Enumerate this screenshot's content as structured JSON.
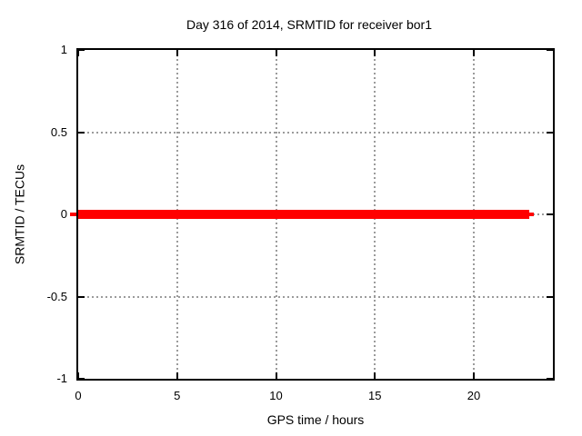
{
  "title": "Day 316 of 2014, SRMTID for receiver bor1",
  "chart_data": {
    "type": "line",
    "title": "Day 316 of 2014, SRMTID for receiver bor1",
    "xlabel": "GPS time / hours",
    "ylabel": "SRMTID / TECUs",
    "xlim": [
      0,
      24
    ],
    "ylim": [
      -1,
      1
    ],
    "xticks": [
      {
        "v": 0,
        "label": "0"
      },
      {
        "v": 5,
        "label": "5"
      },
      {
        "v": 10,
        "label": "10"
      },
      {
        "v": 15,
        "label": "15"
      },
      {
        "v": 20,
        "label": "20"
      }
    ],
    "yticks": [
      {
        "v": 1,
        "label": "1"
      },
      {
        "v": 0.5,
        "label": "0.5"
      },
      {
        "v": 0,
        "label": "0"
      },
      {
        "v": -0.5,
        "label": "-0.5"
      },
      {
        "v": -1,
        "label": "-1"
      }
    ],
    "grid": true,
    "legend": "none",
    "series": [
      {
        "name": "SRMTID",
        "shape": "horizontal-line",
        "y": 0,
        "x_start": 0,
        "x_end": 22.8,
        "thickness_px": 10,
        "color": "#ff0000"
      }
    ]
  },
  "colors": {
    "background": "#ffffff",
    "axis": "#000000",
    "grid": "#9b9b9b",
    "text": "#000000",
    "line": "#ff0000"
  }
}
